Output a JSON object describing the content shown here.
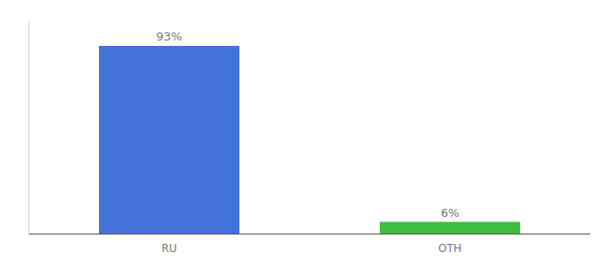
{
  "chart_data": {
    "type": "bar",
    "categories": [
      "RU",
      "OTH"
    ],
    "values": [
      93,
      6
    ],
    "value_labels": [
      "93%",
      "6%"
    ],
    "colors": [
      "#4472db",
      "#3dbf3d"
    ],
    "ylim": [
      0,
      105
    ],
    "data_labels": true,
    "tick_labels": "x"
  }
}
